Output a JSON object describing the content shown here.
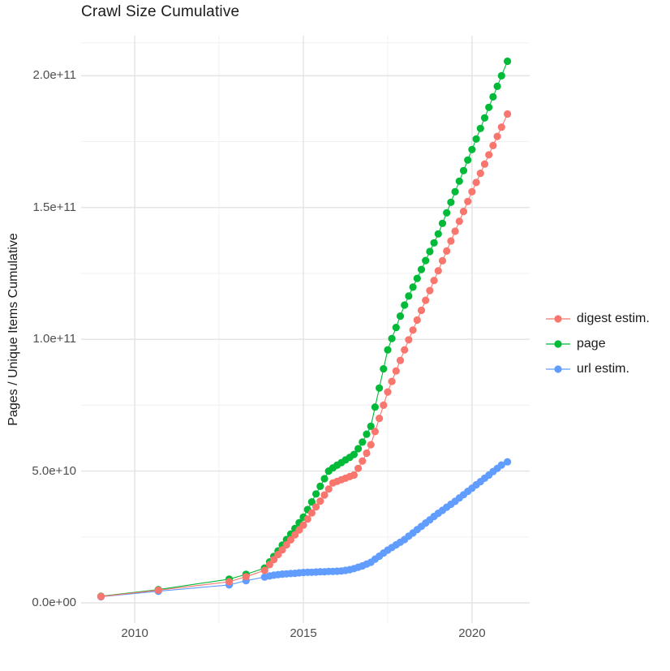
{
  "chart_data": {
    "type": "scatter",
    "title": "Crawl Size Cumulative",
    "xlabel": "",
    "ylabel": "Pages / Unique Items Cumulative",
    "grid": "on",
    "background_color": "#FFFFFF",
    "major_grid_color": "#E3E3E3",
    "minor_grid_color": "#EFEFEF",
    "axis_text_color": "#4D4D4D",
    "legend_position": "right",
    "xlim": [
      2008.41,
      2021.71
    ],
    "ylim_e9": [
      -7.7,
      215.2
    ],
    "unit": "values are cumulative counts in billions (1e9)",
    "x_breaks": [
      2010,
      2015,
      2020
    ],
    "x_minor_breaks": [
      2012.5,
      2017.5
    ],
    "y_breaks": [
      "0.0e+00",
      "5.0e+10",
      "1.0e+11",
      "1.5e+11",
      "2.0e+11"
    ],
    "y_break_values_e9": [
      0,
      50,
      100,
      150,
      200
    ],
    "y_minor_breaks_e9": [
      25,
      75,
      125,
      175,
      212.5
    ],
    "draw_order": [
      1,
      2,
      0
    ],
    "legend": {
      "entries": [
        {
          "label": "digest estim.",
          "color": "#F8766D"
        },
        {
          "label": "page",
          "color": "#00BA38"
        },
        {
          "label": "url estim.",
          "color": "#619CFF"
        }
      ]
    },
    "series": [
      {
        "name": "digest estim.",
        "color": "#F8766D",
        "points": [
          [
            2009.0,
            2.4
          ],
          [
            2010.7,
            4.8
          ],
          [
            2012.8,
            8.0
          ],
          [
            2013.3,
            9.9
          ],
          [
            2013.85,
            12.3
          ],
          [
            2014.0,
            14.5
          ],
          [
            2014.125,
            16.4
          ],
          [
            2014.25,
            18.3
          ],
          [
            2014.375,
            20.1
          ],
          [
            2014.5,
            22.0
          ],
          [
            2014.625,
            23.9
          ],
          [
            2014.75,
            25.8
          ],
          [
            2014.875,
            27.6
          ],
          [
            2015.0,
            29.5
          ],
          [
            2015.125,
            31.8
          ],
          [
            2015.25,
            34.1
          ],
          [
            2015.375,
            36.4
          ],
          [
            2015.5,
            38.6
          ],
          [
            2015.625,
            40.9
          ],
          [
            2015.75,
            43.2
          ],
          [
            2015.875,
            45.5
          ],
          [
            2016.0,
            46.1
          ],
          [
            2016.125,
            46.7
          ],
          [
            2016.25,
            47.3
          ],
          [
            2016.375,
            47.9
          ],
          [
            2016.5,
            48.5
          ],
          [
            2016.625,
            51.0
          ],
          [
            2016.75,
            53.8
          ],
          [
            2016.875,
            56.8
          ],
          [
            2017.0,
            60.0
          ],
          [
            2017.125,
            65.0
          ],
          [
            2017.25,
            70.0
          ],
          [
            2017.375,
            75.0
          ],
          [
            2017.5,
            80.0
          ],
          [
            2017.625,
            84.0
          ],
          [
            2017.75,
            88.0
          ],
          [
            2017.875,
            92.0
          ],
          [
            2018.0,
            96.0
          ],
          [
            2018.125,
            99.8
          ],
          [
            2018.25,
            103.5
          ],
          [
            2018.375,
            107.3
          ],
          [
            2018.5,
            111.0
          ],
          [
            2018.625,
            114.8
          ],
          [
            2018.75,
            118.5
          ],
          [
            2018.875,
            122.3
          ],
          [
            2019.0,
            126.0
          ],
          [
            2019.125,
            129.8
          ],
          [
            2019.25,
            133.5
          ],
          [
            2019.375,
            137.3
          ],
          [
            2019.5,
            141.0
          ],
          [
            2019.625,
            144.8
          ],
          [
            2019.75,
            148.5
          ],
          [
            2019.875,
            152.3
          ],
          [
            2020.0,
            156.0
          ],
          [
            2020.125,
            159.5
          ],
          [
            2020.25,
            163.0
          ],
          [
            2020.375,
            166.5
          ],
          [
            2020.5,
            170.0
          ],
          [
            2020.625,
            173.5
          ],
          [
            2020.75,
            177.0
          ],
          [
            2020.875,
            180.5
          ],
          [
            2021.05,
            185.5
          ]
        ]
      },
      {
        "name": "page",
        "color": "#00BA38",
        "points": [
          [
            2009.0,
            2.5
          ],
          [
            2010.7,
            5.0
          ],
          [
            2012.8,
            9.0
          ],
          [
            2013.3,
            10.8
          ],
          [
            2013.85,
            13.2
          ],
          [
            2014.0,
            15.5
          ],
          [
            2014.125,
            17.6
          ],
          [
            2014.25,
            19.7
          ],
          [
            2014.375,
            21.9
          ],
          [
            2014.5,
            24.0
          ],
          [
            2014.625,
            26.1
          ],
          [
            2014.75,
            28.2
          ],
          [
            2014.875,
            30.4
          ],
          [
            2015.0,
            32.5
          ],
          [
            2015.125,
            35.4
          ],
          [
            2015.25,
            38.3
          ],
          [
            2015.375,
            41.3
          ],
          [
            2015.5,
            44.2
          ],
          [
            2015.625,
            47.1
          ],
          [
            2015.75,
            50.0
          ],
          [
            2015.875,
            51.2
          ],
          [
            2016.0,
            52.2
          ],
          [
            2016.125,
            53.2
          ],
          [
            2016.25,
            54.2
          ],
          [
            2016.375,
            55.2
          ],
          [
            2016.5,
            56.3
          ],
          [
            2016.625,
            58.5
          ],
          [
            2016.75,
            61.0
          ],
          [
            2016.875,
            64.0
          ],
          [
            2017.0,
            67.0
          ],
          [
            2017.125,
            74.3
          ],
          [
            2017.25,
            81.5
          ],
          [
            2017.375,
            88.8
          ],
          [
            2017.5,
            96.0
          ],
          [
            2017.625,
            100.3
          ],
          [
            2017.75,
            104.5
          ],
          [
            2017.875,
            108.8
          ],
          [
            2018.0,
            113.0
          ],
          [
            2018.125,
            116.4
          ],
          [
            2018.25,
            119.8
          ],
          [
            2018.375,
            123.1
          ],
          [
            2018.5,
            126.5
          ],
          [
            2018.625,
            129.9
          ],
          [
            2018.75,
            133.3
          ],
          [
            2018.875,
            136.6
          ],
          [
            2019.0,
            140.0
          ],
          [
            2019.125,
            144.0
          ],
          [
            2019.25,
            148.0
          ],
          [
            2019.375,
            152.0
          ],
          [
            2019.5,
            156.0
          ],
          [
            2019.625,
            160.0
          ],
          [
            2019.75,
            164.0
          ],
          [
            2019.875,
            168.0
          ],
          [
            2020.0,
            172.0
          ],
          [
            2020.125,
            176.0
          ],
          [
            2020.25,
            180.0
          ],
          [
            2020.375,
            184.0
          ],
          [
            2020.5,
            188.0
          ],
          [
            2020.625,
            192.0
          ],
          [
            2020.75,
            196.0
          ],
          [
            2020.875,
            200.0
          ],
          [
            2021.05,
            205.5
          ]
        ]
      },
      {
        "name": "url estim.",
        "color": "#619CFF",
        "points": [
          [
            2009.0,
            2.3
          ],
          [
            2010.7,
            4.4
          ],
          [
            2012.8,
            6.8
          ],
          [
            2013.3,
            8.4
          ],
          [
            2013.85,
            9.8
          ],
          [
            2014.0,
            10.2
          ],
          [
            2014.125,
            10.5
          ],
          [
            2014.25,
            10.7
          ],
          [
            2014.375,
            10.9
          ],
          [
            2014.5,
            11.0
          ],
          [
            2014.625,
            11.1
          ],
          [
            2014.75,
            11.2
          ],
          [
            2014.875,
            11.4
          ],
          [
            2015.0,
            11.5
          ],
          [
            2015.125,
            11.6
          ],
          [
            2015.25,
            11.6
          ],
          [
            2015.375,
            11.7
          ],
          [
            2015.5,
            11.8
          ],
          [
            2015.625,
            11.8
          ],
          [
            2015.75,
            11.9
          ],
          [
            2015.875,
            11.9
          ],
          [
            2016.0,
            12.0
          ],
          [
            2016.125,
            12.1
          ],
          [
            2016.25,
            12.3
          ],
          [
            2016.375,
            12.6
          ],
          [
            2016.5,
            13.0
          ],
          [
            2016.625,
            13.5
          ],
          [
            2016.75,
            14.0
          ],
          [
            2016.875,
            14.7
          ],
          [
            2017.0,
            15.4
          ],
          [
            2017.125,
            16.6
          ],
          [
            2017.25,
            17.7
          ],
          [
            2017.375,
            18.9
          ],
          [
            2017.5,
            20.0
          ],
          [
            2017.625,
            21.0
          ],
          [
            2017.75,
            22.0
          ],
          [
            2017.875,
            23.0
          ],
          [
            2018.0,
            24.0
          ],
          [
            2018.125,
            25.3
          ],
          [
            2018.25,
            26.5
          ],
          [
            2018.375,
            27.8
          ],
          [
            2018.5,
            29.0
          ],
          [
            2018.625,
            30.3
          ],
          [
            2018.75,
            31.5
          ],
          [
            2018.875,
            32.8
          ],
          [
            2019.0,
            34.0
          ],
          [
            2019.125,
            35.1
          ],
          [
            2019.25,
            36.3
          ],
          [
            2019.375,
            37.4
          ],
          [
            2019.5,
            38.5
          ],
          [
            2019.625,
            39.8
          ],
          [
            2019.75,
            41.0
          ],
          [
            2019.875,
            42.3
          ],
          [
            2020.0,
            43.5
          ],
          [
            2020.125,
            44.8
          ],
          [
            2020.25,
            46.0
          ],
          [
            2020.375,
            47.3
          ],
          [
            2020.5,
            48.5
          ],
          [
            2020.625,
            49.8
          ],
          [
            2020.75,
            51.0
          ],
          [
            2020.875,
            52.3
          ],
          [
            2021.05,
            53.5
          ]
        ]
      }
    ]
  }
}
